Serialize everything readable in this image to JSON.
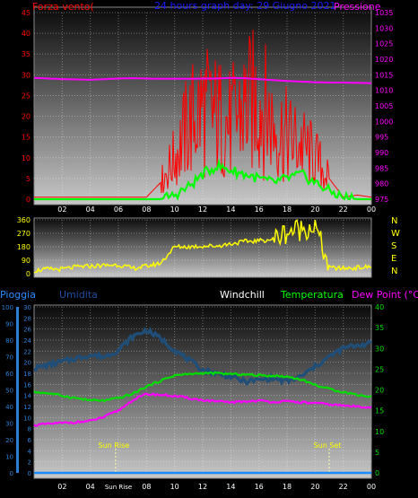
{
  "header": {
    "left_title": "Forza vento(",
    "center_title": "24 hours graph day: 29 Giugno 2021",
    "right_title": "Pressione"
  },
  "colors": {
    "wind": "#ff0000",
    "gust": "#00ff00",
    "pressure": "#ff00ff",
    "direction": "#ffff00",
    "humidity": "#1f4e79",
    "temperature": "#00dd00",
    "dewpoint": "#ff00ff",
    "rain": "#1a8cff",
    "grid": "#ffffff",
    "axis_blue": "#2a7fd4"
  },
  "x_ticks": [
    "02",
    "04",
    "06",
    "08",
    "10",
    "12",
    "14",
    "16",
    "18",
    "20",
    "22",
    "00"
  ],
  "bottom_x_ticks": [
    "02",
    "04",
    "Sun Rise",
    "08",
    "10",
    "12",
    "14",
    "16",
    "18",
    "20",
    "22",
    "00"
  ],
  "chart_data": [
    {
      "type": "line",
      "name_panel": "wind-pressure",
      "yleft": {
        "label": "Forza vento(",
        "ticks": [
          0,
          5,
          10,
          15,
          20,
          25,
          30,
          35,
          40,
          45
        ],
        "range": [
          0,
          45
        ]
      },
      "yright": {
        "label": "Pressione",
        "ticks": [
          975,
          980,
          985,
          990,
          995,
          1000,
          1005,
          1010,
          1015,
          1020,
          1025,
          1030,
          1035
        ],
        "range": [
          975,
          1035
        ]
      },
      "x_hours": [
        0,
        1,
        2,
        3,
        4,
        5,
        6,
        7,
        8,
        9,
        10,
        11,
        12,
        13,
        14,
        15,
        16,
        17,
        18,
        19,
        20,
        21,
        22,
        23,
        24
      ],
      "series": [
        {
          "name": "Pressione",
          "axis": "right",
          "values": [
            1014,
            1013.8,
            1013.6,
            1013.5,
            1013.4,
            1013.6,
            1013.8,
            1013.9,
            1013.8,
            1013.7,
            1013.7,
            1013.7,
            1013.8,
            1013.8,
            1014,
            1013.9,
            1013.6,
            1013.3,
            1013,
            1012.8,
            1012.6,
            1012.5,
            1012.5,
            1012.4,
            1012.3
          ]
        },
        {
          "name": "Raffica",
          "values": [
            0,
            0,
            0,
            0,
            0,
            0,
            0,
            0,
            0,
            0,
            1,
            3,
            6,
            8,
            7,
            6,
            5,
            4,
            5,
            6,
            4,
            2,
            0.5,
            0,
            0
          ]
        },
        {
          "name": "Vento",
          "values": [
            0.5,
            0.5,
            0.5,
            0.5,
            0.5,
            0.5,
            0.5,
            0.5,
            0.5,
            4,
            10,
            18,
            22,
            20,
            18,
            22,
            24,
            18,
            15,
            13,
            10,
            5,
            0.5,
            1,
            0.5
          ]
        }
      ]
    },
    {
      "type": "line",
      "name_panel": "wind-direction",
      "yleft": {
        "ticks": [
          0,
          90,
          180,
          270,
          360
        ],
        "range": [
          0,
          360
        ]
      },
      "yright_labels": [
        "N",
        "W",
        "S",
        "E",
        "N"
      ],
      "x_hours": [
        0,
        1,
        2,
        3,
        4,
        5,
        6,
        7,
        8,
        9,
        10,
        11,
        12,
        13,
        14,
        15,
        16,
        17,
        18,
        19,
        20,
        21,
        22,
        23,
        24
      ],
      "values": [
        20,
        30,
        30,
        45,
        50,
        55,
        60,
        35,
        50,
        70,
        180,
        180,
        185,
        185,
        200,
        215,
        220,
        230,
        280,
        300,
        320,
        40,
        35,
        40,
        45
      ]
    },
    {
      "type": "line",
      "name_panel": "temperature-humidity",
      "legend": [
        "Pioggia",
        "Umidita",
        "Windchill",
        "Temperatura",
        "Dew Point (°C)"
      ],
      "yleft_outer": {
        "label": "Pioggia",
        "ticks": [
          0,
          10,
          20,
          30,
          40,
          50,
          60,
          70,
          80,
          90,
          100
        ],
        "range": [
          0,
          100
        ]
      },
      "yleft_inner": {
        "label": "Umidita",
        "ticks": [
          0,
          2,
          4,
          6,
          8,
          10,
          12,
          14,
          16,
          18,
          20,
          22,
          24,
          26,
          28,
          30
        ],
        "range": [
          0,
          30
        ]
      },
      "yright": {
        "label": "Temperatura",
        "ticks": [
          0,
          5,
          10,
          15,
          20,
          25,
          30,
          35,
          40
        ],
        "range": [
          0,
          40
        ]
      },
      "annotations": [
        "Sun Rise",
        "Sun Set"
      ],
      "annotation_hours": [
        5.8,
        21.0
      ],
      "x_hours": [
        0,
        1,
        2,
        3,
        4,
        5,
        6,
        7,
        8,
        9,
        10,
        11,
        12,
        13,
        14,
        15,
        16,
        17,
        18,
        19,
        20,
        21,
        22,
        23,
        24
      ],
      "series": [
        {
          "name": "Umidita",
          "axis": "outer",
          "values": [
            63,
            65,
            67,
            69,
            71,
            70,
            74,
            82,
            86,
            81,
            74,
            68,
            62,
            60,
            58,
            55,
            56,
            57,
            55,
            58,
            64,
            70,
            75,
            77,
            78
          ]
        },
        {
          "name": "Temperatura",
          "axis": "right",
          "values": [
            19.5,
            19.2,
            18.6,
            18,
            17.5,
            17.4,
            18,
            19,
            20.8,
            22.2,
            23.5,
            23.8,
            24,
            24,
            23.8,
            23.7,
            23.5,
            23.4,
            23.2,
            22.5,
            21.2,
            20.2,
            19.5,
            18.8,
            18.3
          ]
        },
        {
          "name": "Dew Point (°C)",
          "axis": "right",
          "values": [
            11.5,
            11.8,
            12,
            12.2,
            12.5,
            13.5,
            15,
            17.5,
            19,
            18.8,
            18.5,
            18,
            17.5,
            17.2,
            17,
            17.2,
            17.4,
            17.1,
            17.2,
            17,
            16.8,
            16.5,
            16.2,
            16,
            15.8
          ]
        },
        {
          "name": "Pioggia",
          "axis": "outer",
          "values": [
            0,
            0,
            0,
            0,
            0,
            0,
            0,
            0,
            0,
            0,
            0,
            0,
            0,
            0,
            0,
            0,
            0,
            0,
            0,
            0,
            0,
            0,
            0,
            0,
            0
          ]
        }
      ]
    }
  ]
}
